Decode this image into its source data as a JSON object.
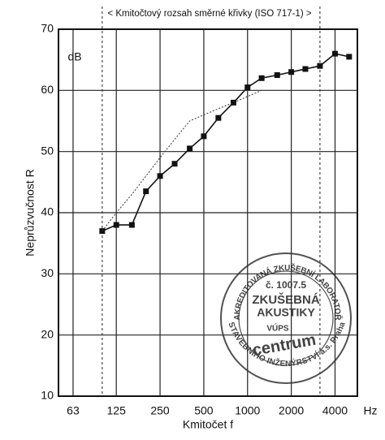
{
  "chart_data": {
    "type": "line",
    "x_label": "Kmitočet  f",
    "x_unit": "Hz",
    "y_label": "Neprůzvučnost  R",
    "y_unit": "dB",
    "range_label": "< Kmitočtový rozsah směrné křivky (ISO 717-1) >",
    "range": [
      100,
      3150
    ],
    "x": [
      100,
      125,
      160,
      200,
      250,
      315,
      400,
      500,
      630,
      800,
      1000,
      1250,
      1600,
      2000,
      2500,
      3150,
      4000,
      5000
    ],
    "series": [
      {
        "color": "#111111",
        "style": "solid",
        "marker": "square",
        "values": [
          37,
          38,
          38,
          43.5,
          46,
          48,
          50.5,
          52.5,
          55.5,
          58,
          60.5,
          62,
          62.5,
          63,
          63.5,
          64,
          66,
          65.5
        ]
      },
      {
        "color": "#333333",
        "style": "dashed",
        "marker": "none",
        "values": [
          37,
          40,
          43,
          46,
          49,
          52,
          55,
          56,
          57,
          58,
          59,
          60,
          null,
          null,
          null,
          null,
          null,
          null
        ]
      }
    ],
    "xscale": "log",
    "xlim": [
      50,
      5700
    ],
    "xticks": [
      63,
      125,
      250,
      500,
      1000,
      2000,
      4000
    ],
    "ylim": [
      10,
      70
    ],
    "yticks": [
      10,
      20,
      30,
      40,
      50,
      60,
      70
    ],
    "grid": true,
    "stamp": {
      "top": "AKREDITOVANÁ ZKUŠEBNÍ LABORATOŘ",
      "number": "č. 1007.5",
      "line1": "ZKUŠEBNÁ",
      "line2": "AKUSTIKY",
      "logo": "VÚPS",
      "name": "centrum",
      "bottom": "STAVEBNÍHO INŽENÝRSTVÍ a.s. Praha"
    }
  }
}
